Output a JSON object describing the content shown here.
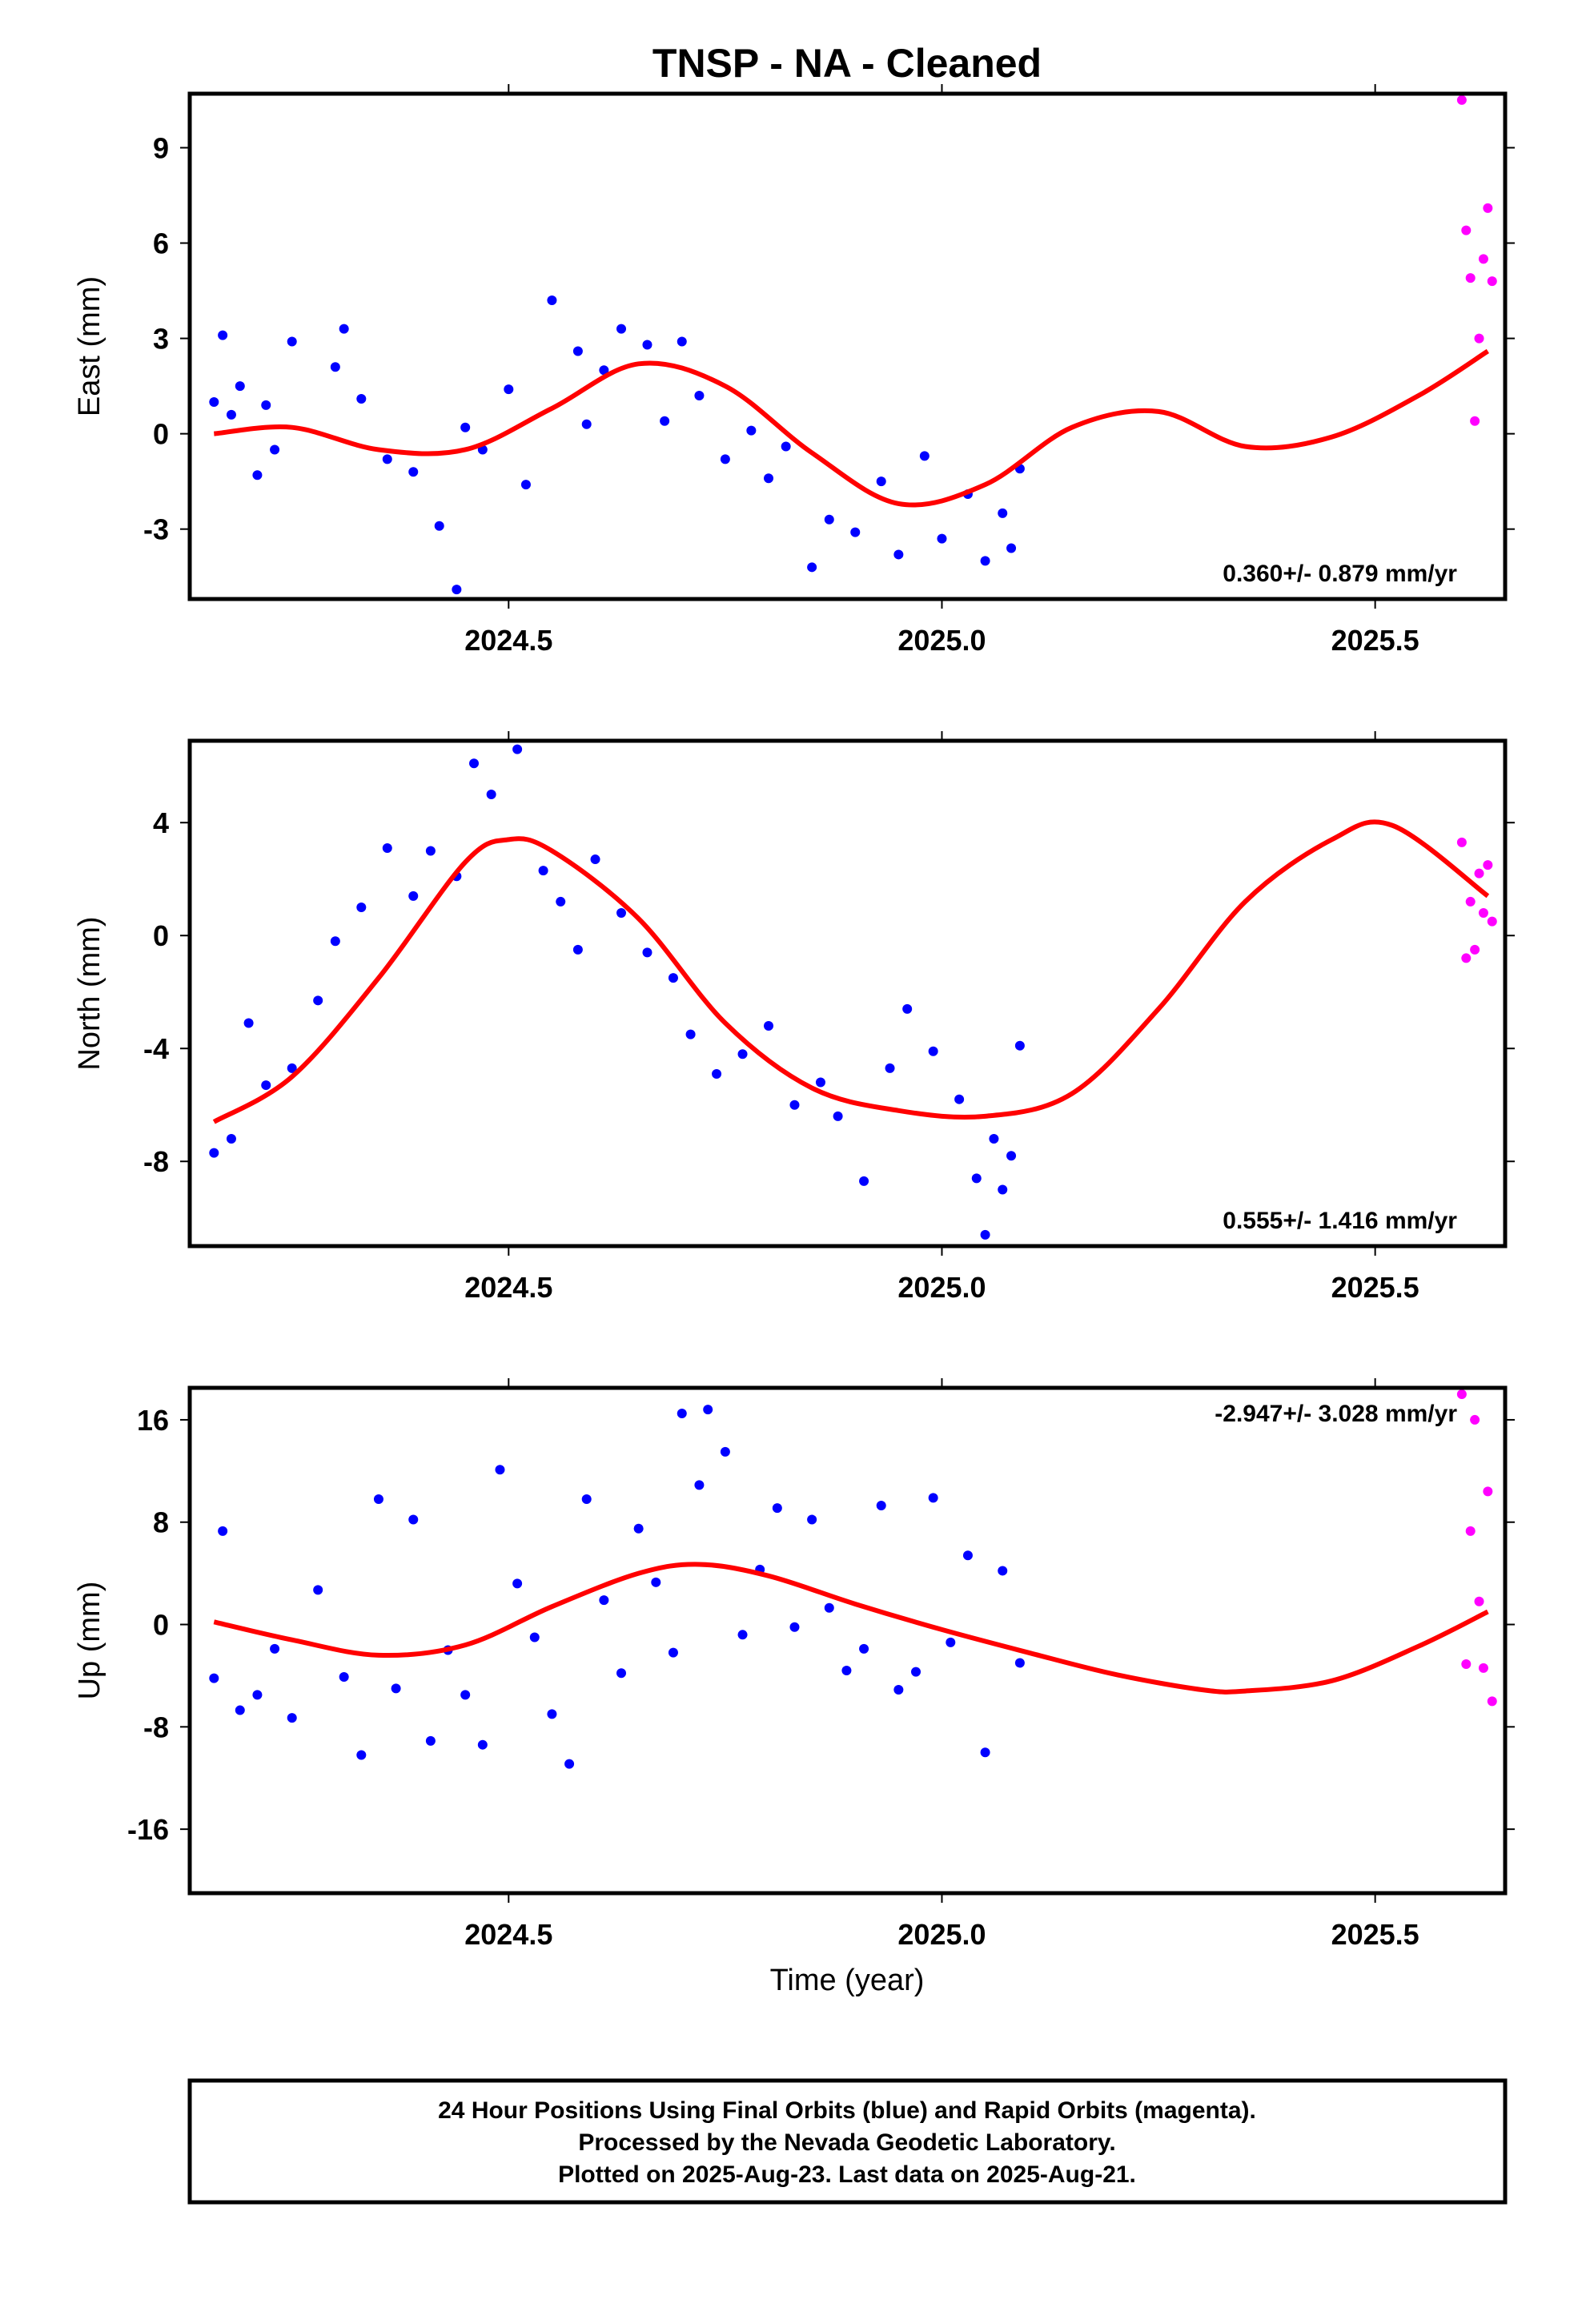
{
  "title": "TNSP  - NA - Cleaned",
  "x_axis_label": "Time (year)",
  "footer": {
    "line1": "24 Hour Positions Using Final Orbits (blue) and Rapid Orbits (magenta).",
    "line2": "Processed by the Nevada Geodetic Laboratory.",
    "line3": "Plotted on 2025-Aug-23. Last data on 2025-Aug-21."
  },
  "colors": {
    "final_orbit": "#0000ff",
    "rapid_orbit": "#ff00ff",
    "fit_line": "#ff0000"
  },
  "chart_data": [
    {
      "type": "scatter",
      "component": "east",
      "ylabel": "East (mm)",
      "xlim": [
        2024.132,
        2025.65
      ],
      "ylim": [
        -5.2,
        10.7
      ],
      "x_ticks": [
        2024.5,
        2025.0,
        2025.5
      ],
      "x_tick_labels": [
        "2024.5",
        "2025.0",
        "2025.5"
      ],
      "y_ticks": [
        -3,
        0,
        3,
        6,
        9
      ],
      "y_tick_labels": [
        "-3",
        "0",
        "3",
        "6",
        "9"
      ],
      "rate_label": "0.360+/- 0.879 mm/yr",
      "rate_position": "bottom-right",
      "series": [
        {
          "x": [
            2024.16,
            2024.17,
            2024.18,
            2024.19,
            2024.21,
            2024.22,
            2024.23,
            2024.25
          ],
          "y": [
            1.0,
            3.1,
            0.6,
            1.5,
            -1.3,
            0.9,
            -0.5,
            2.9
          ]
        },
        {
          "x": [
            2024.3,
            2024.31,
            2024.33,
            2024.36,
            2024.39,
            2024.42,
            2024.44,
            2024.45
          ],
          "y": [
            2.1,
            3.3,
            1.1,
            -0.8,
            -1.2,
            -2.9,
            -4.9,
            0.2
          ]
        },
        {
          "x": [
            2024.47,
            2024.5,
            2024.52,
            2024.55,
            2024.58,
            2024.59,
            2024.61,
            2024.63
          ],
          "y": [
            -0.5,
            1.4,
            -1.6,
            4.2,
            2.6,
            0.3,
            2.0,
            3.3
          ]
        },
        {
          "x": [
            2024.66,
            2024.68,
            2024.7,
            2024.72,
            2024.75,
            2024.78,
            2024.8,
            2024.82
          ],
          "y": [
            2.8,
            0.4,
            2.9,
            1.2,
            -0.8,
            0.1,
            -1.4,
            -0.4
          ]
        },
        {
          "x": [
            2024.85,
            2024.87,
            2024.9,
            2024.93,
            2024.95,
            2024.98,
            2025.0,
            2025.03
          ],
          "y": [
            -4.2,
            -2.7,
            -3.1,
            -1.5,
            -3.8,
            -0.7,
            -3.3,
            -1.9
          ]
        },
        {
          "x": [
            2025.05,
            2025.07,
            2025.08,
            2025.09
          ],
          "y": [
            -4.0,
            -2.5,
            -3.6,
            -1.1
          ]
        }
      ],
      "fit_line": {
        "x": [
          2024.16,
          2024.25,
          2024.35,
          2024.45,
          2024.55,
          2024.65,
          2024.75,
          2024.85,
          2024.95,
          2025.05,
          2025.15,
          2025.25,
          2025.35,
          2025.45,
          2025.55,
          2025.63
        ],
        "y": [
          0.0,
          0.2,
          -0.5,
          -0.5,
          0.8,
          2.2,
          1.5,
          -0.6,
          -2.2,
          -1.6,
          0.2,
          0.7,
          -0.4,
          -0.1,
          1.2,
          2.6
        ]
      },
      "rapid_points": {
        "x": [
          2025.6,
          2025.605,
          2025.61,
          2025.615,
          2025.62,
          2025.625,
          2025.63,
          2025.635
        ],
        "y": [
          10.5,
          6.4,
          4.9,
          0.4,
          3.0,
          5.5,
          7.1,
          4.8
        ]
      }
    },
    {
      "type": "scatter",
      "component": "north",
      "ylabel": "North (mm)",
      "xlim": [
        2024.132,
        2025.65
      ],
      "ylim": [
        -11.0,
        6.9
      ],
      "x_ticks": [
        2024.5,
        2025.0,
        2025.5
      ],
      "x_tick_labels": [
        "2024.5",
        "2025.0",
        "2025.5"
      ],
      "y_ticks": [
        -8,
        -4,
        0,
        4
      ],
      "y_tick_labels": [
        "-8",
        "-4",
        "0",
        "4"
      ],
      "rate_label": "0.555+/- 1.416 mm/yr",
      "rate_position": "bottom-right",
      "series": [
        {
          "x": [
            2024.16,
            2024.18,
            2024.2,
            2024.22,
            2024.25,
            2024.28,
            2024.3,
            2024.33
          ],
          "y": [
            -7.7,
            -7.2,
            -3.1,
            -5.3,
            -4.7,
            -2.3,
            -0.2,
            1.0
          ]
        },
        {
          "x": [
            2024.36,
            2024.39,
            2024.41,
            2024.44,
            2024.46,
            2024.48,
            2024.51,
            2024.54
          ],
          "y": [
            3.1,
            1.4,
            3.0,
            2.1,
            6.1,
            5.0,
            6.6,
            2.3
          ]
        },
        {
          "x": [
            2024.56,
            2024.58,
            2024.6,
            2024.63,
            2024.66,
            2024.69,
            2024.71,
            2024.74
          ],
          "y": [
            1.2,
            -0.5,
            2.7,
            0.8,
            -0.6,
            -1.5,
            -3.5,
            -4.9
          ]
        },
        {
          "x": [
            2024.77,
            2024.8,
            2024.83,
            2024.86,
            2024.88,
            2024.91,
            2024.94,
            2024.96
          ],
          "y": [
            -4.2,
            -3.2,
            -6.0,
            -5.2,
            -6.4,
            -8.7,
            -4.7,
            -2.6
          ]
        },
        {
          "x": [
            2024.99,
            2025.02,
            2025.04,
            2025.05,
            2025.06,
            2025.07,
            2025.08,
            2025.09
          ],
          "y": [
            -4.1,
            -5.8,
            -8.6,
            -10.6,
            -7.2,
            -9.0,
            -7.8,
            -3.9
          ]
        }
      ],
      "fit_line": {
        "x": [
          2024.16,
          2024.25,
          2024.35,
          2024.45,
          2024.5,
          2024.55,
          2024.65,
          2024.75,
          2024.85,
          2024.95,
          2025.05,
          2025.15,
          2025.25,
          2025.35,
          2025.45,
          2025.52,
          2025.63
        ],
        "y": [
          -6.6,
          -5.0,
          -1.5,
          2.6,
          3.4,
          3.0,
          0.6,
          -3.1,
          -5.4,
          -6.2,
          -6.4,
          -5.6,
          -2.6,
          1.2,
          3.4,
          3.9,
          1.4
        ]
      },
      "rapid_points": {
        "x": [
          2025.6,
          2025.605,
          2025.61,
          2025.615,
          2025.62,
          2025.625,
          2025.63,
          2025.635
        ],
        "y": [
          3.3,
          -0.8,
          1.2,
          -0.5,
          2.2,
          0.8,
          2.5,
          0.5
        ]
      }
    },
    {
      "type": "scatter",
      "component": "up",
      "ylabel": "Up (mm)",
      "xlim": [
        2024.132,
        2025.65
      ],
      "ylim": [
        -21.0,
        18.5
      ],
      "x_ticks": [
        2024.5,
        2025.0,
        2025.5
      ],
      "x_tick_labels": [
        "2024.5",
        "2025.0",
        "2025.5"
      ],
      "y_ticks": [
        -16,
        -8,
        0,
        8,
        16
      ],
      "y_tick_labels": [
        "-16",
        "-8",
        "0",
        "8",
        "16"
      ],
      "rate_label": "-2.947+/- 3.028 mm/yr",
      "rate_position": "top-right",
      "series": [
        {
          "x": [
            2024.16,
            2024.17,
            2024.19,
            2024.21,
            2024.23,
            2024.25,
            2024.28,
            2024.31
          ],
          "y": [
            -4.2,
            7.3,
            -6.7,
            -5.5,
            -1.9,
            -7.3,
            2.7,
            -4.1
          ]
        },
        {
          "x": [
            2024.33,
            2024.35,
            2024.37,
            2024.39,
            2024.41,
            2024.43,
            2024.45,
            2024.47
          ],
          "y": [
            -10.2,
            9.8,
            -5.0,
            8.2,
            -9.1,
            -2.0,
            -5.5,
            -9.4
          ]
        },
        {
          "x": [
            2024.49,
            2024.51,
            2024.53,
            2024.55,
            2024.57,
            2024.59,
            2024.61,
            2024.63
          ],
          "y": [
            12.1,
            3.2,
            -1.0,
            -7.0,
            -10.9,
            9.8,
            1.9,
            -3.8
          ]
        },
        {
          "x": [
            2024.65,
            2024.67,
            2024.69,
            2024.7,
            2024.72,
            2024.73,
            2024.75,
            2024.77
          ],
          "y": [
            7.5,
            3.3,
            -2.2,
            16.5,
            10.9,
            16.8,
            13.5,
            -0.8
          ]
        },
        {
          "x": [
            2024.79,
            2024.81,
            2024.83,
            2024.85,
            2024.87,
            2024.89,
            2024.91,
            2024.93
          ],
          "y": [
            4.3,
            9.1,
            -0.2,
            8.2,
            1.3,
            -3.6,
            -1.9,
            9.3
          ]
        },
        {
          "x": [
            2024.95,
            2024.97,
            2024.99,
            2025.01,
            2025.03,
            2025.05,
            2025.07,
            2025.09
          ],
          "y": [
            -5.1,
            -3.7,
            9.9,
            -1.4,
            5.4,
            -10.0,
            4.2,
            -3.0
          ]
        }
      ],
      "fit_line": {
        "x": [
          2024.16,
          2024.25,
          2024.35,
          2024.45,
          2024.55,
          2024.65,
          2024.72,
          2024.8,
          2024.9,
          2025.0,
          2025.1,
          2025.2,
          2025.3,
          2025.35,
          2025.45,
          2025.55,
          2025.63
        ],
        "y": [
          0.2,
          -1.2,
          -2.4,
          -1.6,
          1.4,
          4.0,
          4.7,
          3.8,
          1.6,
          -0.4,
          -2.2,
          -3.9,
          -5.1,
          -5.2,
          -4.4,
          -1.7,
          1.0
        ]
      },
      "rapid_points": {
        "x": [
          2025.6,
          2025.605,
          2025.61,
          2025.615,
          2025.62,
          2025.625,
          2025.63,
          2025.635
        ],
        "y": [
          18.0,
          -3.1,
          7.3,
          16.0,
          1.8,
          -3.4,
          10.4,
          -6.0
        ]
      }
    }
  ]
}
